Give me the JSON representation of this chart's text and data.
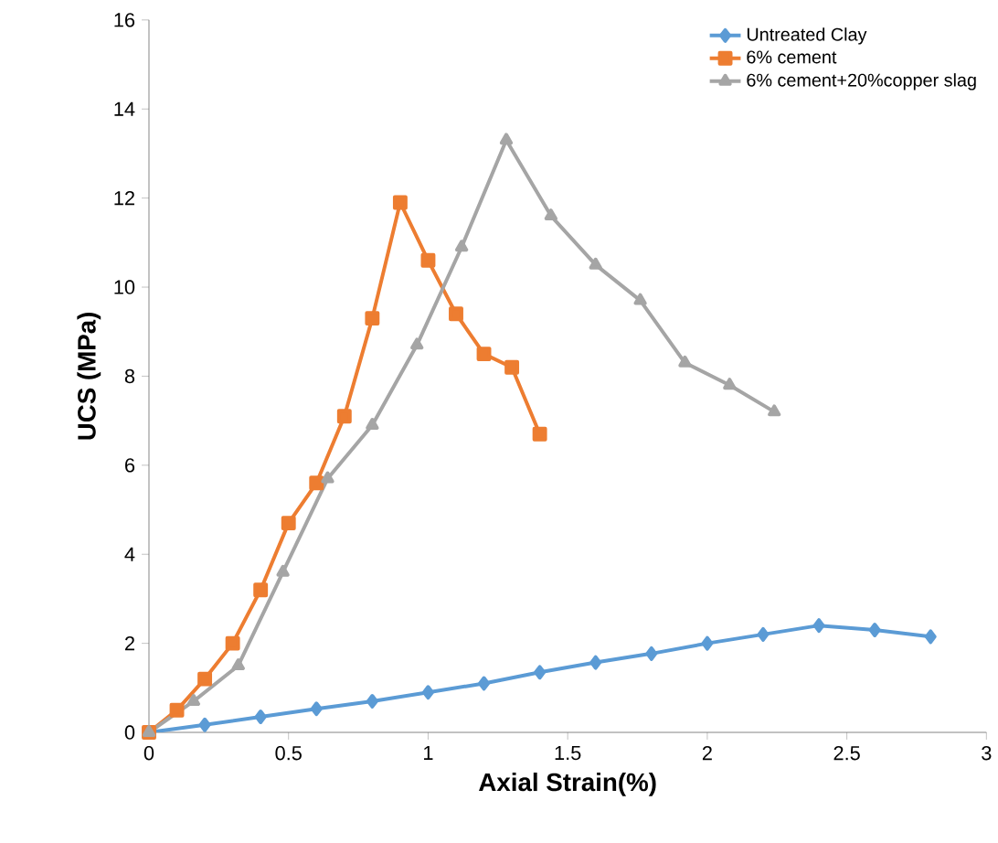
{
  "chart_data": {
    "type": "line",
    "xlabel": "Axial Strain(%)",
    "ylabel": "UCS (MPa)",
    "xlim": [
      0,
      3
    ],
    "xticks": [
      0,
      0.5,
      1,
      1.5,
      2,
      2.5,
      3
    ],
    "ylim": [
      0,
      16
    ],
    "yticks": [
      0,
      2,
      4,
      6,
      8,
      10,
      12,
      14,
      16
    ],
    "grid": false,
    "legend": "top right",
    "line_style": "solid",
    "series": [
      {
        "name": "Untreated Clay",
        "color": "#5b9bd5",
        "marker": "diamond",
        "x": [
          0,
          0.2,
          0.4,
          0.6,
          0.8,
          1.0,
          1.2,
          1.4,
          1.6,
          1.8,
          2.0,
          2.2,
          2.4,
          2.6,
          2.8
        ],
        "values": [
          0,
          0.17,
          0.35,
          0.53,
          0.7,
          0.9,
          1.1,
          1.35,
          1.57,
          1.77,
          2.0,
          2.2,
          2.4,
          2.3,
          2.15
        ]
      },
      {
        "name": "6% cement",
        "color": "#ed7d31",
        "marker": "square",
        "x": [
          0,
          0.1,
          0.2,
          0.3,
          0.4,
          0.5,
          0.6,
          0.7,
          0.8,
          0.9,
          1.0,
          1.1,
          1.2,
          1.3,
          1.4
        ],
        "values": [
          0,
          0.5,
          1.2,
          2.0,
          3.2,
          4.7,
          5.6,
          7.1,
          9.3,
          11.9,
          10.6,
          9.4,
          8.5,
          8.2,
          6.7
        ]
      },
      {
        "name": "6%  cement+20%copper slag",
        "color": "#a5a5a5",
        "marker": "triangle",
        "x": [
          0,
          0.16,
          0.32,
          0.48,
          0.64,
          0.8,
          0.96,
          1.12,
          1.28,
          1.44,
          1.6,
          1.76,
          1.92,
          2.08,
          2.24
        ],
        "values": [
          0,
          0.7,
          1.5,
          3.6,
          5.7,
          6.9,
          8.7,
          10.9,
          13.3,
          11.6,
          10.5,
          9.7,
          8.3,
          7.8,
          7.2
        ]
      }
    ]
  }
}
